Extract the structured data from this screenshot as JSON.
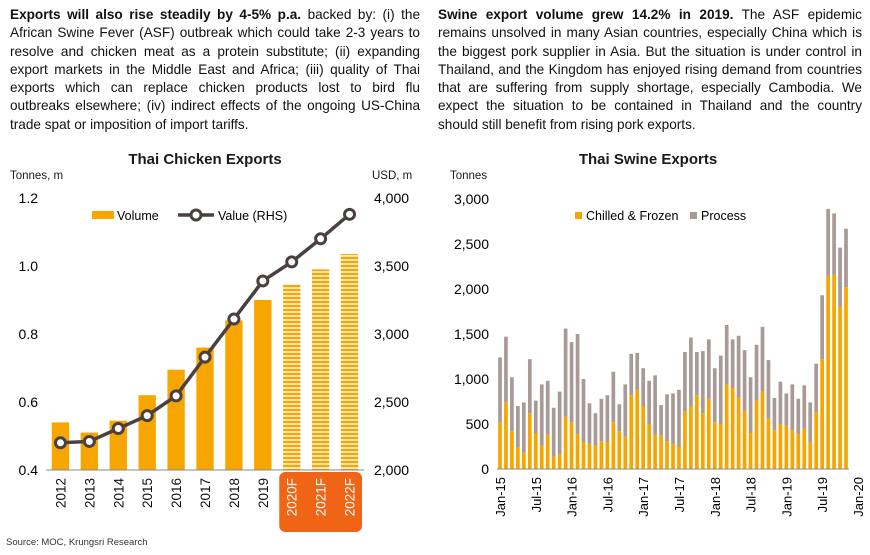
{
  "left_text": {
    "bold": "Exports will also rise steadily by 4-5% p.a.",
    "body": " backed by: (i) the African Swine Fever (ASF) outbreak which could take 2-3 years to resolve and chicken meat as a protein substitute; (ii) expanding export markets in the Middle East and Africa; (iii) quality of Thai exports which can replace chicken products lost to bird flu outbreaks elsewhere; (iv) indirect effects of the ongoing US-China trade spat or imposition of import tariffs."
  },
  "right_text": {
    "bold": "Swine export volume grew 14.2% in 2019.",
    "body": " The ASF epidemic remains unsolved in many Asian countries, especially China which is the biggest pork supplier in Asia. But the situation is under control in Thailand, and the Kingdom has enjoyed rising demand from countries that are suffering from supply shortage, especially Cambodia. We expect the situation to be contained in Thailand and the country should still benefit from rising pork exports."
  },
  "source": "Source: MOC, Krungsri Research",
  "colors": {
    "orange": "#F7A600",
    "grey": "#A89A96",
    "dark": "#4A4040",
    "forecast_box": "#F06416"
  },
  "chart_data": [
    {
      "type": "bar",
      "title": "Thai Chicken Exports",
      "left_unit": "Tonnes, m",
      "right_unit": "USD, m",
      "categories": [
        "2012",
        "2013",
        "2014",
        "2015",
        "2016",
        "2017",
        "2018",
        "2019",
        "2020F",
        "2021F",
        "2022F"
      ],
      "forecast_categories": [
        "2020F",
        "2021F",
        "2022F"
      ],
      "ylim": [
        0.4,
        1.2
      ],
      "yticks": [
        "0.4",
        "0.6",
        "0.8",
        "1.0",
        "1.2"
      ],
      "y2lim": [
        2000,
        4000
      ],
      "y2ticks": [
        "2,000",
        "2,500",
        "3,000",
        "3,500",
        "4,000"
      ],
      "legend_position": "top-left",
      "series": [
        {
          "name": "Volume",
          "type": "bar",
          "values": [
            0.54,
            0.51,
            0.545,
            0.62,
            0.695,
            0.76,
            0.84,
            0.9,
            0.945,
            0.99,
            1.035
          ]
        },
        {
          "name": "Value (RHS)",
          "type": "line",
          "axis": "right",
          "values": [
            2200,
            2210,
            2305,
            2400,
            2545,
            2830,
            3110,
            3390,
            3530,
            3700,
            3880
          ]
        }
      ]
    },
    {
      "type": "bar",
      "stacked": true,
      "title": "Thai Swine Exports",
      "left_unit": "Tonnes",
      "ylim": [
        0,
        3000
      ],
      "yticks": [
        "0",
        "500",
        "1,000",
        "1,500",
        "2,000",
        "2,500",
        "3,000"
      ],
      "x_tick_labels": [
        "Jan-15",
        "Jul-15",
        "Jan-16",
        "Jul-16",
        "Jan-17",
        "Jul-17",
        "Jan-18",
        "Jul-18",
        "Jan-19",
        "Jul-19",
        "Jan-20"
      ],
      "legend_position": "top-left",
      "series": [
        {
          "name": "Chilled & Frozen",
          "values": [
            520,
            740,
            420,
            240,
            180,
            620,
            400,
            260,
            380,
            140,
            160,
            580,
            520,
            390,
            300,
            280,
            260,
            310,
            300,
            520,
            420,
            360,
            820,
            880,
            700,
            500,
            380,
            370,
            310,
            280,
            250,
            640,
            700,
            820,
            620,
            780,
            520,
            500,
            940,
            900,
            800,
            640,
            400,
            760,
            860,
            560,
            430,
            500,
            480,
            430,
            390,
            450,
            300,
            630,
            1220,
            2150,
            2160,
            1800,
            2020
          ]
        },
        {
          "name": "Process",
          "values": [
            720,
            730,
            600,
            460,
            560,
            600,
            360,
            680,
            600,
            540,
            700,
            980,
            890,
            1110,
            700,
            450,
            360,
            470,
            520,
            560,
            300,
            580,
            460,
            410,
            420,
            480,
            660,
            340,
            520,
            560,
            630,
            660,
            760,
            480,
            690,
            660,
            600,
            760,
            660,
            540,
            680,
            680,
            620,
            620,
            720,
            650,
            360,
            470,
            360,
            510,
            390,
            480,
            440,
            540,
            710,
            740,
            680,
            660,
            650
          ]
        }
      ]
    }
  ]
}
